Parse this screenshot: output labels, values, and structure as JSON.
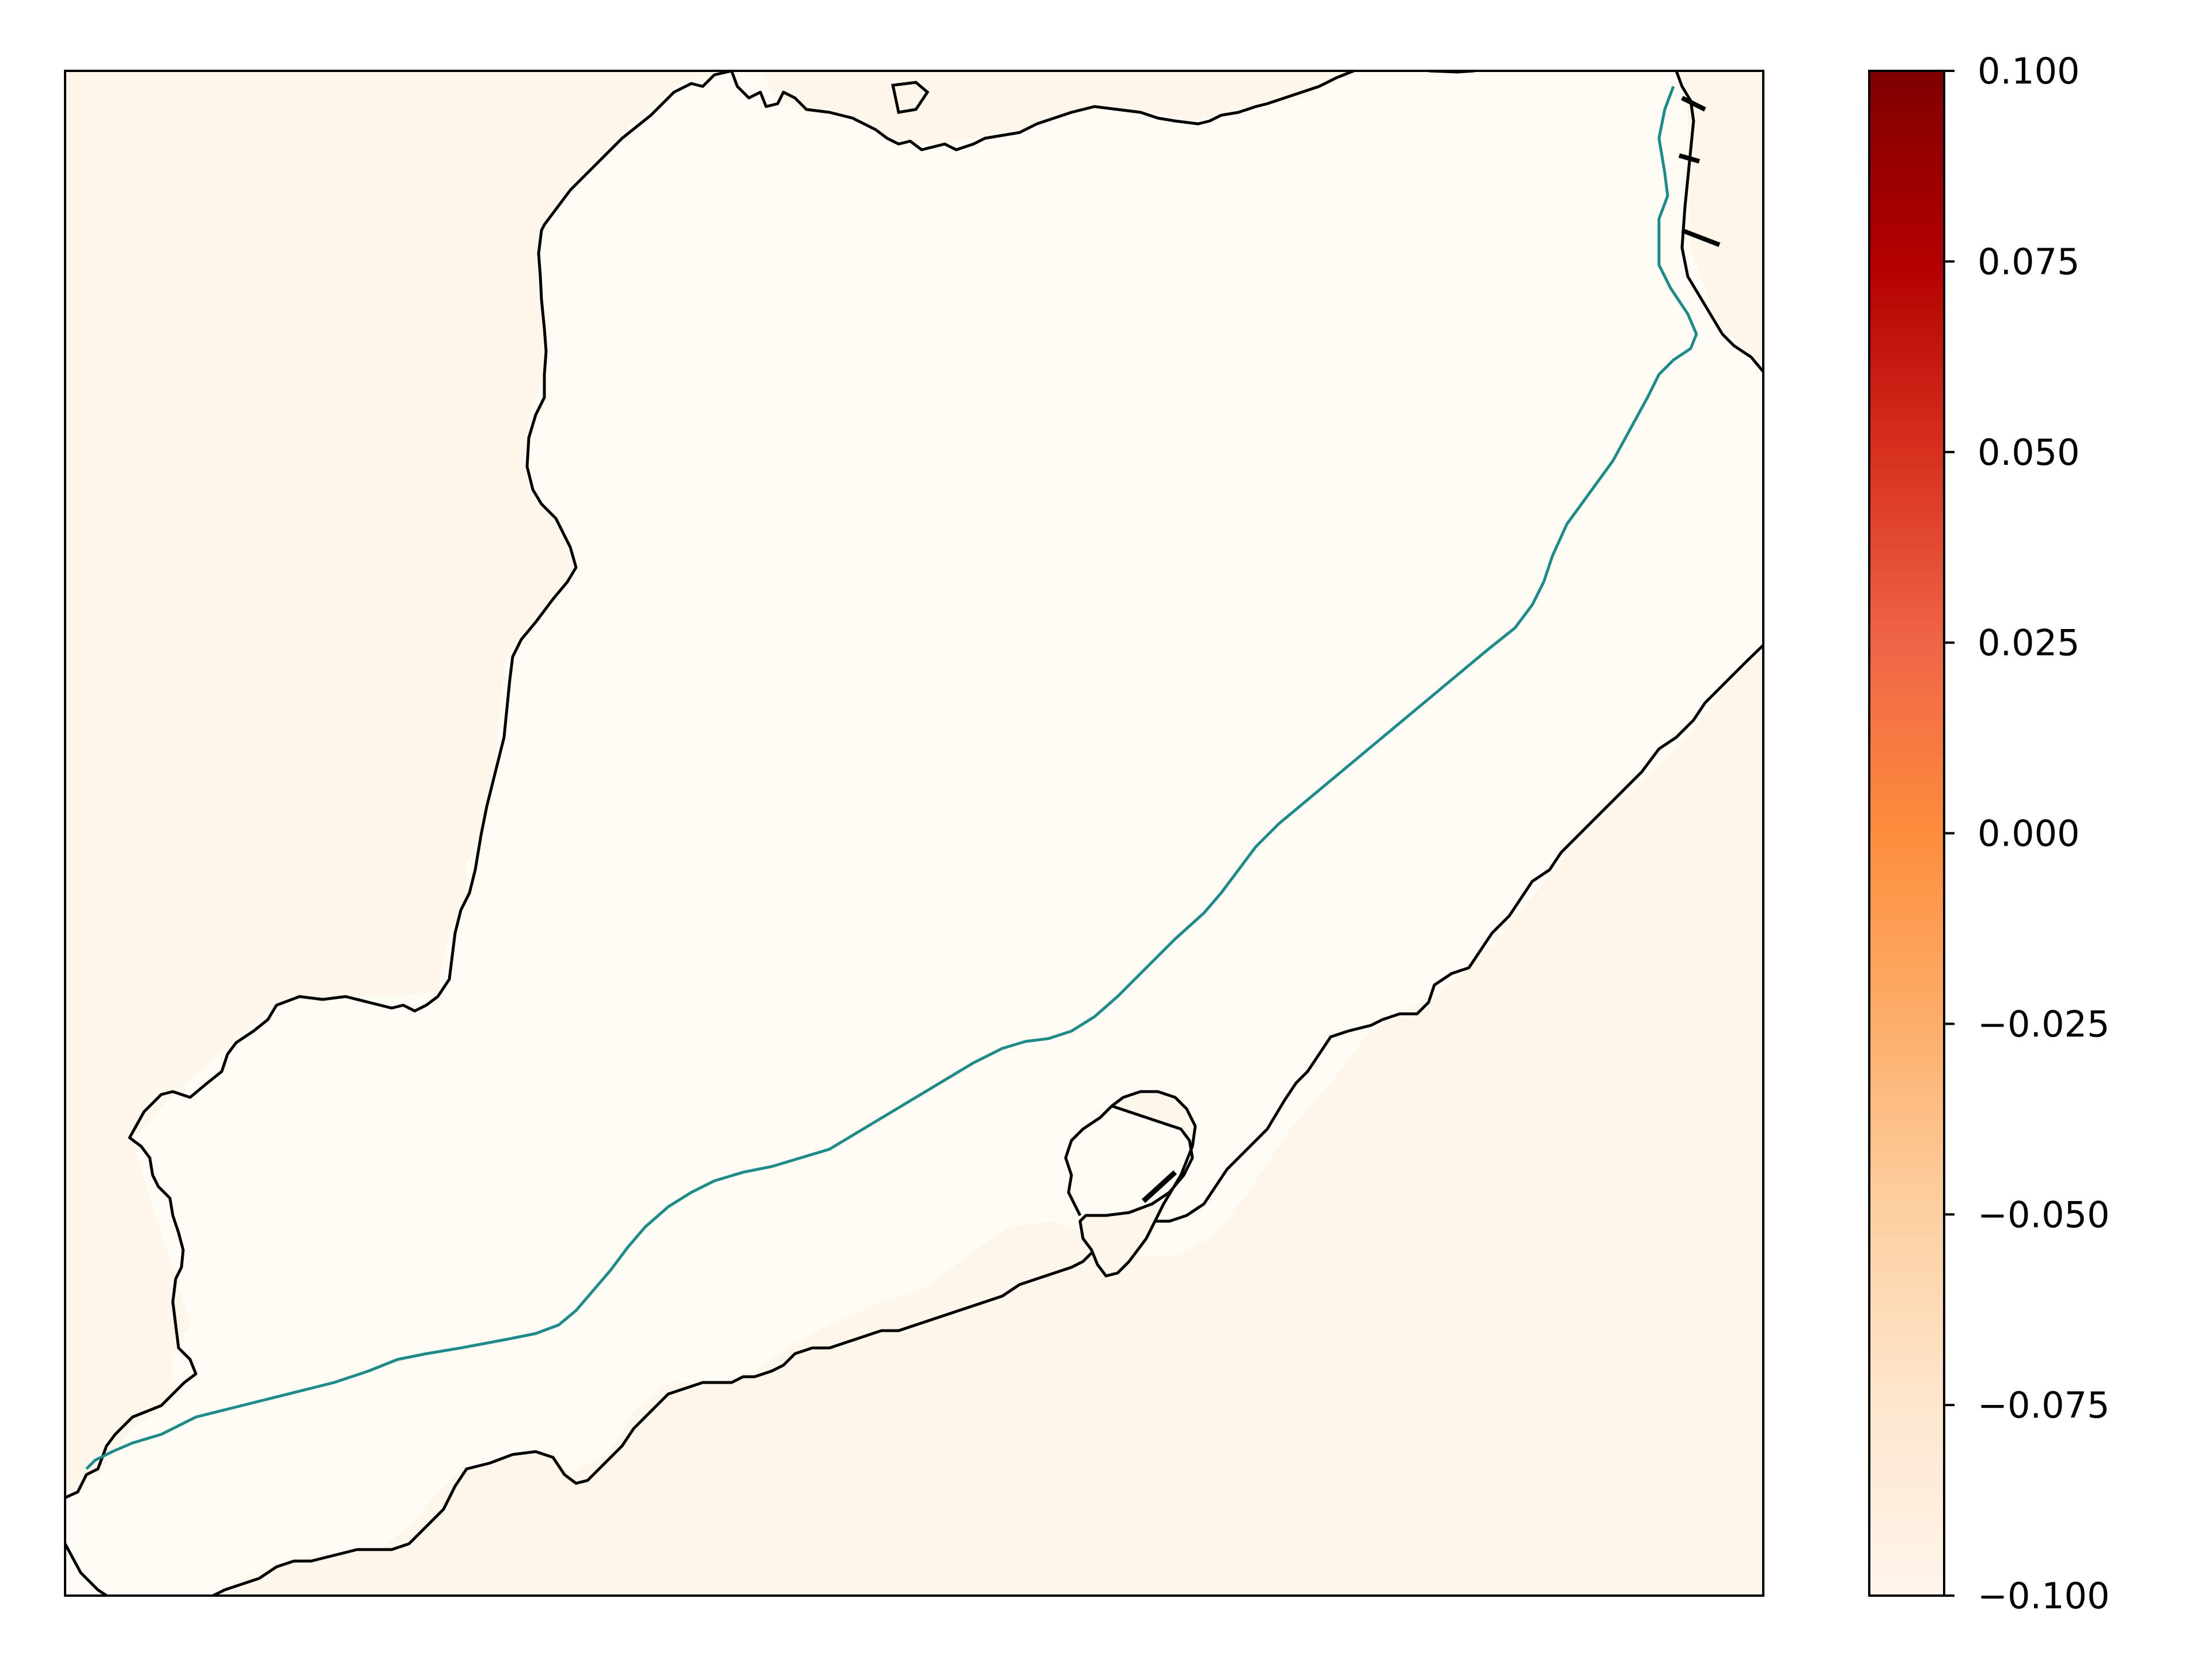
{
  "colors": {
    "land": "#fef6ea",
    "water": "#fffcf5",
    "coastline": "#000000",
    "route": "#1f8a87",
    "colormap": [
      "#fff5eb",
      "#fee6ce",
      "#fdd0a2",
      "#fdae6b",
      "#fd8d3c",
      "#f16913",
      "#d94801",
      "#a63603",
      "#7f0000"
    ]
  },
  "colorbar": {
    "min": -0.1,
    "max": 0.1,
    "colormap_name": "OrRd",
    "ticks": [
      {
        "value": 0.1,
        "label": "0.100"
      },
      {
        "value": 0.075,
        "label": "0.075"
      },
      {
        "value": 0.05,
        "label": "0.050"
      },
      {
        "value": 0.025,
        "label": "0.025"
      },
      {
        "value": 0.0,
        "label": "0.000"
      },
      {
        "value": -0.025,
        "label": "−0.025"
      },
      {
        "value": -0.05,
        "label": "−0.050"
      },
      {
        "value": -0.075,
        "label": "−0.075"
      },
      {
        "value": -0.1,
        "label": "−0.100"
      }
    ]
  }
}
